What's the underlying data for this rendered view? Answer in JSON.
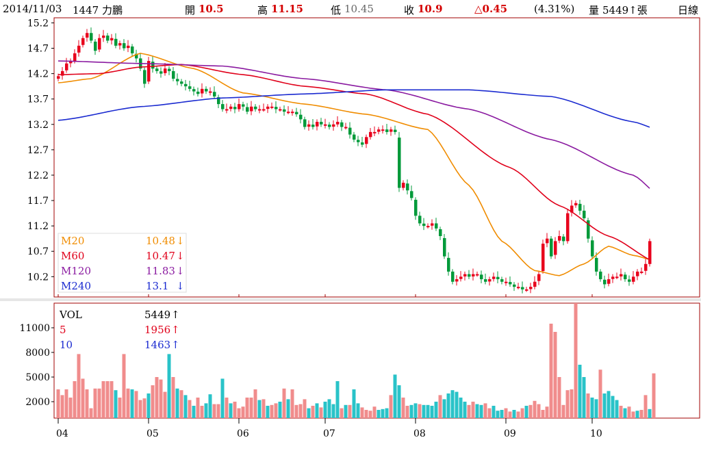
{
  "header": {
    "date": "2014/11/03",
    "stock": "1447 力鵬",
    "open_label": "開",
    "open_value": "10.5",
    "high_label": "高",
    "high_value": "11.15",
    "low_label": "低",
    "low_value": "10.45",
    "close_label": "收",
    "close_value": "10.9",
    "change": "△0.45",
    "change_pct": "(4.31%)",
    "volume_label": "量",
    "volume_value": "5449↑張",
    "period": "日線"
  },
  "colors": {
    "up": "#e8001c",
    "down": "#009a3a",
    "vol_up": "#f08c8c",
    "vol_down": "#29c3c8",
    "frame": "#a00000",
    "m20": "#f08c00",
    "m60": "#e0001a",
    "m120": "#8a1aa0",
    "m240": "#1a2ad0"
  },
  "chart_data": [
    {
      "type": "candlestick",
      "ylim": [
        9.8,
        15.3
      ],
      "yticks": [
        "15.2",
        "14.7",
        "14.2",
        "13.7",
        "13.2",
        "12.7",
        "12.2",
        "11.7",
        "11.2",
        "10.7",
        "10.2"
      ],
      "ytick_values": [
        15.2,
        14.7,
        14.2,
        13.7,
        13.2,
        12.7,
        12.2,
        11.7,
        11.2,
        10.7,
        10.2
      ],
      "xticks": [
        "04",
        "05",
        "06",
        "07",
        "08",
        "09",
        "10"
      ],
      "closes": [
        14.15,
        14.25,
        14.4,
        14.45,
        14.6,
        14.75,
        14.9,
        15.0,
        14.85,
        14.65,
        14.9,
        14.95,
        14.85,
        14.9,
        14.75,
        14.8,
        14.7,
        14.75,
        14.6,
        14.5,
        14.3,
        14.0,
        14.45,
        14.3,
        14.25,
        14.2,
        14.3,
        14.25,
        14.1,
        14.05,
        14.0,
        13.95,
        13.9,
        13.85,
        13.8,
        13.9,
        13.85,
        13.85,
        13.75,
        13.6,
        13.5,
        13.5,
        13.55,
        13.5,
        13.6,
        13.55,
        13.45,
        13.55,
        13.5,
        13.5,
        13.5,
        13.55,
        13.55,
        13.5,
        13.5,
        13.45,
        13.45,
        13.45,
        13.4,
        13.3,
        13.15,
        13.2,
        13.15,
        13.25,
        13.2,
        13.2,
        13.15,
        13.2,
        13.25,
        13.15,
        13.15,
        13.0,
        12.9,
        12.85,
        12.8,
        12.95,
        13.05,
        13.05,
        13.1,
        13.1,
        13.05,
        13.1,
        13.05,
        11.95,
        12.05,
        11.9,
        11.75,
        11.4,
        11.25,
        11.2,
        11.2,
        11.25,
        11.15,
        11.0,
        10.6,
        10.3,
        10.1,
        10.15,
        10.2,
        10.25,
        10.2,
        10.25,
        10.25,
        10.15,
        10.1,
        10.15,
        10.2,
        10.15,
        10.1,
        10.1,
        10.05,
        10.0,
        10.0,
        9.95,
        9.95,
        10.0,
        10.1,
        10.25,
        10.85,
        10.95,
        10.6,
        10.9,
        11.0,
        10.9,
        11.45,
        11.6,
        11.65,
        11.5,
        11.35,
        10.95,
        10.6,
        10.3,
        10.15,
        10.05,
        10.15,
        10.2,
        10.2,
        10.25,
        10.15,
        10.1,
        10.2,
        10.3,
        10.3,
        10.45,
        10.9
      ],
      "ma": [
        {
          "name": "M20",
          "value": "10.48",
          "arrow": "↓",
          "start": 14.02,
          "pts": [
            [
              0,
              14.02
            ],
            [
              8,
              14.1
            ],
            [
              20,
              14.6
            ],
            [
              33,
              14.3
            ],
            [
              45,
              13.82
            ],
            [
              60,
              13.6
            ],
            [
              75,
              13.4
            ],
            [
              90,
              13.1
            ],
            [
              100,
              12.0
            ],
            [
              108,
              10.9
            ],
            [
              116,
              10.32
            ],
            [
              122,
              10.22
            ],
            [
              128,
              10.45
            ],
            [
              134,
              10.8
            ],
            [
              140,
              10.62
            ],
            [
              146,
              10.5
            ]
          ]
        },
        {
          "name": "M60",
          "value": "10.47",
          "arrow": "↓",
          "pts": [
            [
              0,
              14.18
            ],
            [
              10,
              14.2
            ],
            [
              20,
              14.33
            ],
            [
              30,
              14.38
            ],
            [
              45,
              14.18
            ],
            [
              60,
              13.95
            ],
            [
              75,
              13.8
            ],
            [
              90,
              13.4
            ],
            [
              110,
              12.35
            ],
            [
              122,
              11.6
            ],
            [
              134,
              11.0
            ],
            [
              146,
              10.47
            ]
          ]
        },
        {
          "name": "M120",
          "value": "11.83",
          "arrow": "↓",
          "pts": [
            [
              0,
              14.45
            ],
            [
              20,
              14.4
            ],
            [
              40,
              14.35
            ],
            [
              60,
              14.1
            ],
            [
              80,
              13.88
            ],
            [
              100,
              13.5
            ],
            [
              120,
              12.9
            ],
            [
              140,
              12.2
            ],
            [
              146,
              11.83
            ]
          ]
        },
        {
          "name": "M240",
          "value": "13.1",
          "arrow": "↓",
          "pts": [
            [
              0,
              13.28
            ],
            [
              20,
              13.55
            ],
            [
              40,
              13.72
            ],
            [
              60,
              13.8
            ],
            [
              80,
              13.88
            ],
            [
              100,
              13.88
            ],
            [
              120,
              13.75
            ],
            [
              140,
              13.25
            ],
            [
              146,
              13.1
            ]
          ]
        }
      ]
    },
    {
      "type": "bar",
      "ylim": [
        0,
        14000
      ],
      "yticks": [
        "11000",
        "8000",
        "5000",
        "2000"
      ],
      "ytick_values": [
        11000,
        8000,
        5000,
        2000
      ],
      "legend": [
        {
          "name": "VOL",
          "value": "5449",
          "arrow": "↑"
        },
        {
          "name": "5",
          "value": "1956",
          "arrow": "↑"
        },
        {
          "name": "10",
          "value": "1463",
          "arrow": "↑"
        }
      ],
      "values": [
        3500,
        2800,
        3500,
        2500,
        4500,
        7800,
        4800,
        3500,
        1200,
        3600,
        3600,
        4500,
        4500,
        4500,
        3400,
        2500,
        7800,
        3600,
        3500,
        3300,
        2200,
        2400,
        3000,
        4000,
        5000,
        4700,
        3200,
        7800,
        5000,
        3600,
        3400,
        2800,
        2200,
        1500,
        2500,
        1500,
        1800,
        2900,
        1700,
        1700,
        4800,
        2500,
        1800,
        2000,
        1200,
        1400,
        2500,
        2500,
        3500,
        2200,
        2300,
        1500,
        1600,
        1800,
        2000,
        3600,
        2300,
        3500,
        1600,
        1700,
        2300,
        1200,
        1500,
        1800,
        1300,
        2000,
        2300,
        1700,
        4500,
        1200,
        1600,
        1600,
        3500,
        1800,
        1300,
        1000,
        900,
        1400,
        1000,
        1100,
        1200,
        2800,
        5300,
        4000,
        2500,
        1500,
        1600,
        1800,
        1700,
        1600,
        1600,
        1500,
        2000,
        2800,
        2300,
        3000,
        3400,
        3200,
        2500,
        2000,
        1600,
        2000,
        1700,
        1600,
        1800,
        1200,
        1500,
        900,
        1000,
        1200,
        800,
        1000,
        800,
        1200,
        1500,
        1600,
        2100,
        1700,
        1000,
        1400,
        11500,
        10500,
        5000,
        1600,
        3400,
        3500,
        14000,
        6500,
        5000,
        3000,
        2500,
        2300,
        5900,
        3000,
        3300,
        2700,
        2200,
        1500,
        1200,
        1400,
        800,
        900,
        1000,
        2800,
        1100,
        5449
      ],
      "colors_up": [
        1,
        1,
        1,
        1,
        1,
        1,
        1,
        1,
        1,
        1,
        1,
        1,
        1,
        1,
        0,
        1,
        1,
        1,
        0,
        1,
        1,
        1,
        0,
        1,
        1,
        1,
        1,
        0,
        1,
        0,
        1,
        0,
        1,
        0,
        1,
        1,
        0,
        0,
        1,
        1,
        0,
        1,
        0,
        1,
        1,
        1,
        1,
        1,
        1,
        0,
        1,
        0,
        1,
        1,
        0,
        1,
        0,
        1,
        1,
        1,
        1,
        0,
        1,
        0,
        1,
        0,
        0,
        0,
        0,
        1,
        0,
        1,
        0,
        0,
        1,
        1,
        1,
        1,
        0,
        0,
        0,
        1,
        0,
        0,
        1,
        1,
        0,
        0,
        1,
        0,
        0,
        0,
        0,
        1,
        0,
        0,
        0,
        0,
        0,
        0,
        1,
        1,
        0,
        0,
        1,
        1,
        0,
        0,
        0,
        1,
        1,
        0,
        1,
        1,
        0,
        1,
        1,
        1,
        1,
        1,
        1,
        1,
        1,
        1,
        1,
        1,
        1,
        0,
        0,
        1,
        0,
        0,
        1,
        0,
        0,
        0,
        0,
        1,
        0,
        1,
        1,
        0,
        1,
        1,
        0,
        1
      ]
    }
  ]
}
